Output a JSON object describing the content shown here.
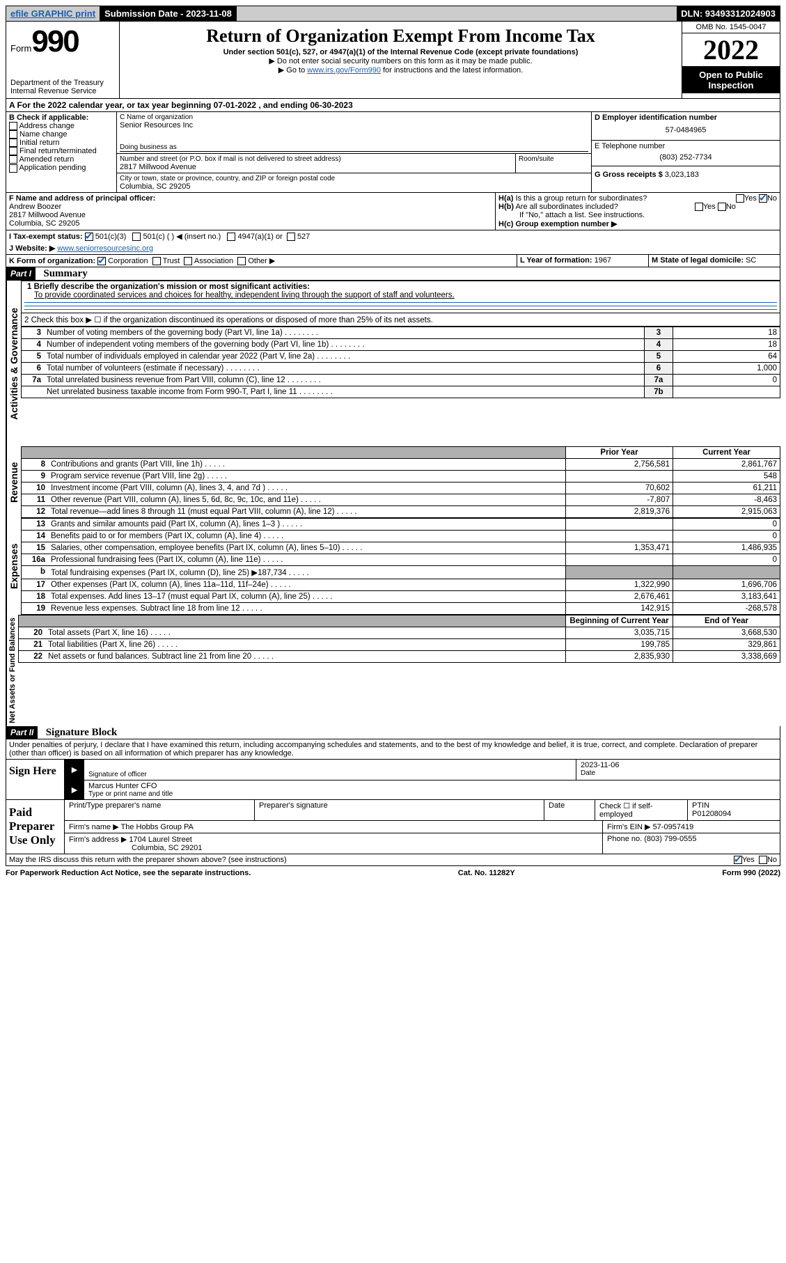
{
  "top_bar": {
    "efile": "efile GRAPHIC print",
    "submission_label": "Submission Date - 2023-11-08",
    "dln": "DLN: 93493312024903"
  },
  "header": {
    "form_label": "Form",
    "form_number": "990",
    "dept": "Department of the Treasury Internal Revenue Service",
    "title": "Return of Organization Exempt From Income Tax",
    "subtitle": "Under section 501(c), 527, or 4947(a)(1) of the Internal Revenue Code (except private foundations)",
    "note1": "▶ Do not enter social security numbers on this form as it may be made public.",
    "note2_pre": "▶ Go to ",
    "note2_link": "www.irs.gov/Form990",
    "note2_post": " for instructions and the latest information.",
    "omb": "OMB No. 1545-0047",
    "year": "2022",
    "open_public": "Open to Public Inspection"
  },
  "line_a": "A For the 2022 calendar year, or tax year beginning 07-01-2022   , and ending 06-30-2023",
  "box_b": {
    "label": "B Check if applicable:",
    "items": [
      "Address change",
      "Name change",
      "Initial return",
      "Final return/terminated",
      "Amended return",
      "Application pending"
    ]
  },
  "box_c": {
    "name_label": "C Name of organization",
    "name": "Senior Resources Inc",
    "dba_label": "Doing business as",
    "addr_label": "Number and street (or P.O. box if mail is not delivered to street address)",
    "room_label": "Room/suite",
    "addr": "2817 Millwood Avenue",
    "city_label": "City or town, state or province, country, and ZIP or foreign postal code",
    "city": "Columbia, SC  29205"
  },
  "box_d": {
    "label": "D Employer identification number",
    "value": "57-0484965"
  },
  "box_e": {
    "label": "E Telephone number",
    "value": "(803) 252-7734"
  },
  "box_g": {
    "label": "G Gross receipts $",
    "value": "3,023,183"
  },
  "box_f": {
    "label": "F Name and address of principal officer:",
    "name": "Andrew Boozer",
    "addr": "2817 Millwood Avenue",
    "city": "Columbia, SC  29205"
  },
  "box_h": {
    "ha_label": "H(a)  Is this a group return for subordinates?",
    "hb_label": "H(b)  Are all subordinates included?",
    "hb_note": "If \"No,\" attach a list. See instructions.",
    "hc_label": "H(c)  Group exemption number ▶",
    "yes": "Yes",
    "no": "No"
  },
  "box_i": {
    "label": "I  Tax-exempt status:",
    "opt1": "501(c)(3)",
    "opt2": "501(c) (  ) ◀ (insert no.)",
    "opt3": "4947(a)(1) or",
    "opt4": "527"
  },
  "box_j": {
    "label": "J  Website: ▶",
    "value": "www.seniorresourcesinc.org"
  },
  "box_k": {
    "label": "K Form of organization:",
    "opts": [
      "Corporation",
      "Trust",
      "Association",
      "Other ▶"
    ]
  },
  "box_l": {
    "label": "L Year of formation:",
    "value": "1967"
  },
  "box_m": {
    "label": "M State of legal domicile:",
    "value": "SC"
  },
  "part1": {
    "header": "Part I",
    "title": "Summary",
    "line1_label": "1  Briefly describe the organization's mission or most significant activities:",
    "mission": "To provide coordinated services and choices for healthy, independent living through the support of staff and volunteers.",
    "line2": "2  Check this box ▶ ☐  if the organization discontinued its operations or disposed of more than 25% of its net assets.",
    "governance_label": "Activities & Governance",
    "revenue_label": "Revenue",
    "expenses_label": "Expenses",
    "netassets_label": "Net Assets or Fund Balances",
    "rows_gov": [
      {
        "n": "3",
        "label": "Number of voting members of the governing body (Part VI, line 1a)",
        "box": "3",
        "val": "18"
      },
      {
        "n": "4",
        "label": "Number of independent voting members of the governing body (Part VI, line 1b)",
        "box": "4",
        "val": "18"
      },
      {
        "n": "5",
        "label": "Total number of individuals employed in calendar year 2022 (Part V, line 2a)",
        "box": "5",
        "val": "64"
      },
      {
        "n": "6",
        "label": "Total number of volunteers (estimate if necessary)",
        "box": "6",
        "val": "1,000"
      },
      {
        "n": "7a",
        "label": "Total unrelated business revenue from Part VIII, column (C), line 12",
        "box": "7a",
        "val": "0"
      },
      {
        "n": "",
        "label": "Net unrelated business taxable income from Form 990-T, Part I, line 11",
        "box": "7b",
        "val": ""
      }
    ],
    "col_prior": "Prior Year",
    "col_current": "Current Year",
    "rows_rev": [
      {
        "n": "8",
        "label": "Contributions and grants (Part VIII, line 1h)",
        "prior": "2,756,581",
        "cur": "2,861,767"
      },
      {
        "n": "9",
        "label": "Program service revenue (Part VIII, line 2g)",
        "prior": "",
        "cur": "548"
      },
      {
        "n": "10",
        "label": "Investment income (Part VIII, column (A), lines 3, 4, and 7d )",
        "prior": "70,602",
        "cur": "61,211"
      },
      {
        "n": "11",
        "label": "Other revenue (Part VIII, column (A), lines 5, 6d, 8c, 9c, 10c, and 11e)",
        "prior": "-7,807",
        "cur": "-8,463"
      },
      {
        "n": "12",
        "label": "Total revenue—add lines 8 through 11 (must equal Part VIII, column (A), line 12)",
        "prior": "2,819,376",
        "cur": "2,915,063"
      }
    ],
    "rows_exp": [
      {
        "n": "13",
        "label": "Grants and similar amounts paid (Part IX, column (A), lines 1–3 )",
        "prior": "",
        "cur": "0"
      },
      {
        "n": "14",
        "label": "Benefits paid to or for members (Part IX, column (A), line 4)",
        "prior": "",
        "cur": "0"
      },
      {
        "n": "15",
        "label": "Salaries, other compensation, employee benefits (Part IX, column (A), lines 5–10)",
        "prior": "1,353,471",
        "cur": "1,486,935"
      },
      {
        "n": "16a",
        "label": "Professional fundraising fees (Part IX, column (A), line 11e)",
        "prior": "",
        "cur": "0"
      },
      {
        "n": "b",
        "label": "Total fundraising expenses (Part IX, column (D), line 25) ▶187,734",
        "prior": "grey",
        "cur": "grey"
      },
      {
        "n": "17",
        "label": "Other expenses (Part IX, column (A), lines 11a–11d, 11f–24e)",
        "prior": "1,322,990",
        "cur": "1,696,706"
      },
      {
        "n": "18",
        "label": "Total expenses. Add lines 13–17 (must equal Part IX, column (A), line 25)",
        "prior": "2,676,461",
        "cur": "3,183,641"
      },
      {
        "n": "19",
        "label": "Revenue less expenses. Subtract line 18 from line 12",
        "prior": "142,915",
        "cur": "-268,578"
      }
    ],
    "col_begin": "Beginning of Current Year",
    "col_end": "End of Year",
    "rows_net": [
      {
        "n": "20",
        "label": "Total assets (Part X, line 16)",
        "prior": "3,035,715",
        "cur": "3,668,530"
      },
      {
        "n": "21",
        "label": "Total liabilities (Part X, line 26)",
        "prior": "199,785",
        "cur": "329,861"
      },
      {
        "n": "22",
        "label": "Net assets or fund balances. Subtract line 21 from line 20",
        "prior": "2,835,930",
        "cur": "3,338,669"
      }
    ]
  },
  "part2": {
    "header": "Part II",
    "title": "Signature Block",
    "declaration": "Under penalties of perjury, I declare that I have examined this return, including accompanying schedules and statements, and to the best of my knowledge and belief, it is true, correct, and complete. Declaration of preparer (other than officer) is based on all information of which preparer has any knowledge.",
    "sign_here": "Sign Here",
    "sig_officer": "Signature of officer",
    "sig_date": "2023-11-06",
    "date_label": "Date",
    "officer_name": "Marcus Hunter CFO",
    "type_name": "Type or print name and title",
    "paid_prep": "Paid Preparer Use Only",
    "prep_name_label": "Print/Type preparer's name",
    "prep_sig_label": "Preparer's signature",
    "check_self": "Check ☐ if self-employed",
    "ptin_label": "PTIN",
    "ptin": "P01208094",
    "firm_name_label": "Firm's name   ▶",
    "firm_name": "The Hobbs Group PA",
    "firm_ein_label": "Firm's EIN ▶",
    "firm_ein": "57-0957419",
    "firm_addr_label": "Firm's address ▶",
    "firm_addr": "1704 Laurel Street",
    "firm_city": "Columbia, SC  29201",
    "phone_label": "Phone no.",
    "phone": "(803) 799-0555",
    "discuss": "May the IRS discuss this return with the preparer shown above? (see instructions)"
  },
  "footer": {
    "left": "For Paperwork Reduction Act Notice, see the separate instructions.",
    "mid": "Cat. No. 11282Y",
    "right": "Form 990 (2022)"
  }
}
